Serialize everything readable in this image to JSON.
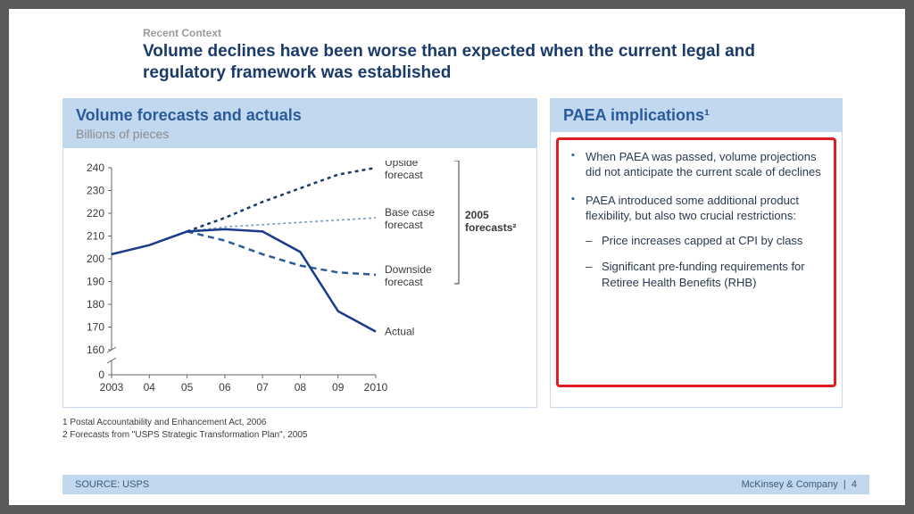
{
  "pretitle": "Recent Context",
  "title": "Volume declines have been worse than expected when the current legal and regulatory framework was established",
  "left_panel": {
    "title": "Volume forecasts and actuals",
    "subtitle": "Billions of pieces"
  },
  "right_panel": {
    "title": "PAEA implications¹",
    "bullets": [
      "When PAEA was passed, volume projections did not anticipate the current scale of declines",
      "PAEA introduced some additional product flexibility, but also two crucial restrictions:"
    ],
    "sub_bullets": [
      "Price increases capped at CPI by class",
      "Significant pre-funding requirements for Retiree Health Benefits (RHB)"
    ]
  },
  "chart": {
    "type": "line",
    "x_categories": [
      "2003",
      "04",
      "05",
      "06",
      "07",
      "08",
      "09",
      "2010"
    ],
    "ylim": [
      0,
      240
    ],
    "broken_at": 160,
    "ytick_labels": [
      "0",
      "160",
      "170",
      "180",
      "190",
      "200",
      "210",
      "220",
      "230",
      "240"
    ],
    "axis_color": "#666666",
    "tick_color": "#666666",
    "label_fontsize": 12,
    "label_color": "#3a3a3a",
    "background_color": "#ffffff",
    "series": [
      {
        "name": "Upside forecast",
        "label": "Upside\nforecast",
        "color": "#1a3a6a",
        "dash": "4,4",
        "width": 2.5,
        "x_start": 2,
        "values": [
          212,
          218,
          225,
          231,
          237,
          240
        ]
      },
      {
        "name": "Base case forecast",
        "label": "Base case\nforecast",
        "color": "#7a9ac0",
        "dash": "3,3",
        "width": 1.6,
        "x_start": 2,
        "values": [
          212,
          214,
          215,
          216,
          217,
          218
        ]
      },
      {
        "name": "Downside forecast",
        "label": "Downside\nforecast",
        "color": "#2a5a9a",
        "dash": "7,5",
        "width": 2.5,
        "x_start": 2,
        "values": [
          212,
          208,
          202,
          197,
          194,
          193
        ]
      },
      {
        "name": "Actual",
        "label": "Actual",
        "color": "#1a3a8a",
        "dash": "none",
        "width": 2.5,
        "x_start": 0,
        "values": [
          202,
          206,
          212,
          213,
          212,
          203,
          177,
          168
        ]
      }
    ],
    "bracket_label": "2005\nforecasts²"
  },
  "footnotes": [
    "1 Postal Accountability and Enhancement Act, 2006",
    "2 Forecasts from \"USPS Strategic Transformation Plan\", 2005"
  ],
  "source": "SOURCE: USPS",
  "company": "McKinsey & Company",
  "page_num": "4",
  "colors": {
    "header_bg": "#c2d8ef",
    "panel_border": "#c9d8e8",
    "title_color": "#1a3a6a",
    "accent_blue": "#2a5a9a",
    "highlight_border": "#e31b23",
    "pretitle_color": "#9a9a9a"
  }
}
